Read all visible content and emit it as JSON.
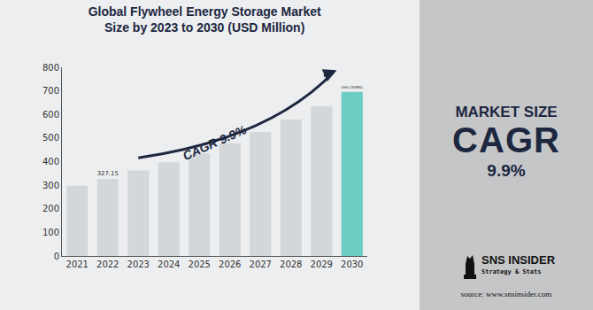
{
  "chart_data": {
    "type": "bar",
    "title": [
      "Global Flywheel Energy Storage Market",
      "Size by 2023 to 2030 (USD Million)"
    ],
    "categories": [
      "2021",
      "2022",
      "2023",
      "2024",
      "2025",
      "2026",
      "2027",
      "2028",
      "2029",
      "2030"
    ],
    "values": [
      298,
      327.15,
      362,
      397,
      435,
      478,
      525,
      578,
      635,
      696.19
    ],
    "value_labels": [
      null,
      "327.15",
      null,
      null,
      null,
      null,
      null,
      null,
      null,
      "696.19(MN)"
    ],
    "data_labels": true,
    "colors": [
      "#d4d7d9",
      "#d4d7d9",
      "#d4d7d9",
      "#d4d7d9",
      "#d4d7d9",
      "#d4d7d9",
      "#d4d7d9",
      "#d4d7d9",
      "#d4d7d9",
      "#6ccdc3"
    ],
    "ylim": [
      0,
      800
    ],
    "yticks": [
      0,
      100,
      200,
      300,
      400,
      500,
      600,
      700,
      800
    ],
    "grid": false,
    "annotations": [
      {
        "text": "CAGR 9.9%"
      }
    ]
  },
  "panel": {
    "heading": "MARKET SIZE",
    "big": "CAGR",
    "value": "9.9%"
  },
  "logo": {
    "brand": "SNS INSIDER",
    "tagline": "Strategy & Stats"
  },
  "source": "source: www.snsinsider.com"
}
